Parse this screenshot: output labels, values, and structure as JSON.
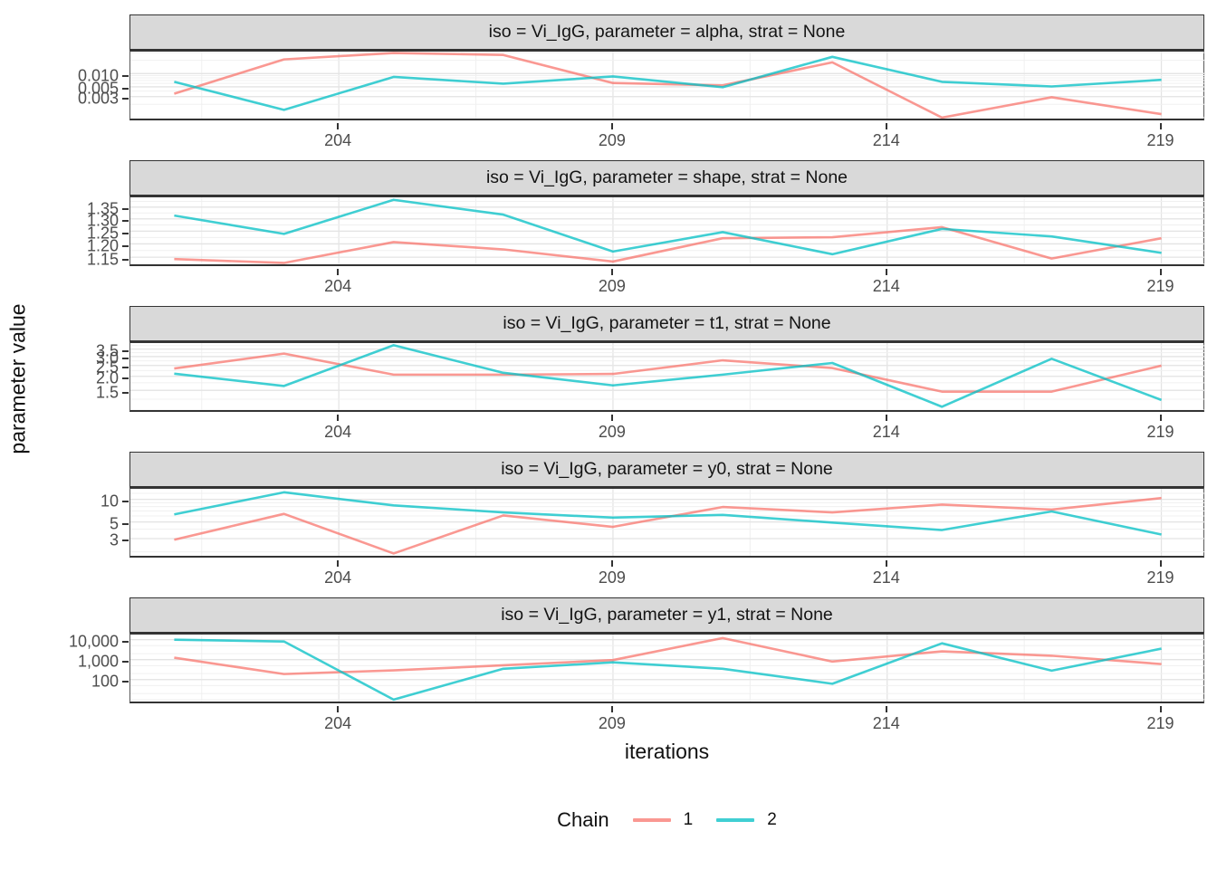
{
  "figure": {
    "y_axis_title": "parameter value",
    "x_axis_title": "iterations"
  },
  "legend": {
    "title": "Chain",
    "entries": [
      {
        "label": "1",
        "color": "#F8766D"
      },
      {
        "label": "2",
        "color": "#00BFC4"
      }
    ]
  },
  "chart_data": {
    "type": "line",
    "description": "Faceted MCMC trace plot, 5 panels sharing an x axis of iterations; two chains per panel; log10 y scales",
    "x": [
      201,
      203,
      205,
      207,
      209,
      211,
      213,
      215,
      217,
      219
    ],
    "x_domain": [
      200.2,
      219.8
    ],
    "x_ticks": [
      204,
      209,
      214,
      219
    ],
    "x_minor_grid": [
      201.5,
      206.5,
      211.5,
      216.5
    ],
    "xlabel": "iterations",
    "ylabel": "parameter value",
    "legend_position": "bottom",
    "panels": [
      {
        "title": "iso = Vi_IgG, parameter = alpha, strat = None",
        "y_scale": "log10",
        "y_domain": [
          0.00095,
          0.0316
        ],
        "y_ticks": [
          {
            "label": "0.010",
            "value": 0.01
          },
          {
            "label": "0.005",
            "value": 0.005
          },
          {
            "label": "0.003",
            "value": 0.003
          }
        ],
        "minor_grid": [
          0.001,
          0.002,
          0.003,
          0.004,
          0.005,
          0.006,
          0.007,
          0.008,
          0.009,
          0.01,
          0.02,
          0.03
        ],
        "series": [
          {
            "name": "1",
            "color": "#F8766D",
            "values": [
              0.0035,
              0.021,
              0.0294,
              0.0265,
              0.0061,
              0.0054,
              0.018,
              0.001,
              0.0029,
              0.0012
            ]
          },
          {
            "name": "2",
            "color": "#00BFC4",
            "values": [
              0.0065,
              0.0015,
              0.0084,
              0.0059,
              0.0086,
              0.0049,
              0.024,
              0.0065,
              0.0051,
              0.0072
            ]
          }
        ]
      },
      {
        "title": "iso = Vi_IgG, parameter = shape, strat = None",
        "y_scale": "log10",
        "y_domain": [
          1.124,
          1.393
        ],
        "y_ticks": [
          {
            "label": "1.35",
            "value": 1.35
          },
          {
            "label": "1.30",
            "value": 1.3
          },
          {
            "label": "1.25",
            "value": 1.25
          },
          {
            "label": "1.20",
            "value": 1.2
          },
          {
            "label": "1.15",
            "value": 1.15
          }
        ],
        "minor_grid": [
          1.125,
          1.15,
          1.175,
          1.2,
          1.225,
          1.25,
          1.275,
          1.3,
          1.325,
          1.35,
          1.375
        ],
        "series": [
          {
            "name": "1",
            "color": "#F8766D",
            "values": [
              1.143,
              1.129,
              1.207,
              1.179,
              1.134,
              1.222,
              1.226,
              1.266,
              1.145,
              1.222
            ]
          },
          {
            "name": "2",
            "color": "#00BFC4",
            "values": [
              1.314,
              1.239,
              1.382,
              1.318,
              1.171,
              1.246,
              1.161,
              1.259,
              1.229,
              1.166
            ]
          }
        ]
      },
      {
        "title": "iso = Vi_IgG, parameter = t1, strat = None",
        "y_scale": "log10",
        "y_domain": [
          1.0,
          3.96
        ],
        "y_ticks": [
          {
            "label": "3.5",
            "value": 3.5
          },
          {
            "label": "3.0",
            "value": 3.0
          },
          {
            "label": "2.5",
            "value": 2.5
          },
          {
            "label": "2.0",
            "value": 2.0
          },
          {
            "label": "1.5",
            "value": 1.5
          }
        ],
        "minor_grid": [
          1.0,
          1.25,
          1.5,
          1.75,
          2.0,
          2.25,
          2.5,
          2.75,
          3.0,
          3.25,
          3.5,
          3.75
        ],
        "series": [
          {
            "name": "1",
            "color": "#F8766D",
            "values": [
              2.35,
              3.19,
              2.07,
              2.07,
              2.1,
              2.78,
              2.37,
              1.46,
              1.46,
              2.49
            ]
          },
          {
            "name": "2",
            "color": "#00BFC4",
            "values": [
              2.11,
              1.64,
              3.79,
              2.15,
              1.66,
              2.07,
              2.63,
              1.07,
              2.87,
              1.23
            ]
          }
        ]
      },
      {
        "title": "iso = Vi_IgG, parameter = y0, strat = None",
        "y_scale": "log10",
        "y_domain": [
          1.77,
          13.8
        ],
        "y_ticks": [
          {
            "label": "10",
            "value": 10
          },
          {
            "label": "5",
            "value": 5
          },
          {
            "label": "3",
            "value": 3
          }
        ],
        "minor_grid": [
          2,
          3,
          4,
          5,
          6,
          7,
          8,
          9,
          10,
          12
        ],
        "series": [
          {
            "name": "1",
            "color": "#F8766D",
            "values": [
              2.9,
              6.4,
              1.9,
              6.1,
              4.3,
              7.9,
              6.7,
              8.5,
              7.3,
              10.4
            ]
          },
          {
            "name": "2",
            "color": "#00BFC4",
            "values": [
              6.3,
              12.4,
              8.3,
              6.7,
              5.7,
              6.2,
              4.9,
              3.9,
              6.9,
              3.4
            ]
          }
        ]
      },
      {
        "title": "iso = Vi_IgG, parameter = y1, strat = None",
        "y_scale": "log10",
        "y_domain": [
          8,
          18000
        ],
        "y_ticks": [
          {
            "label": "10,000",
            "value": 10000
          },
          {
            "label": "1,000",
            "value": 1000
          },
          {
            "label": "100",
            "value": 100
          }
        ],
        "minor_grid": [
          10,
          20,
          50,
          100,
          200,
          500,
          1000,
          2000,
          5000,
          10000
        ],
        "series": [
          {
            "name": "1",
            "color": "#F8766D",
            "values": [
              1250,
              190,
              290,
              520,
              950,
              12000,
              800,
              2600,
              1570,
              600
            ]
          },
          {
            "name": "2",
            "color": "#00BFC4",
            "values": [
              10000,
              8100,
              10,
              350,
              730,
              350,
              62,
              6550,
              280,
              3550
            ]
          }
        ]
      }
    ]
  }
}
